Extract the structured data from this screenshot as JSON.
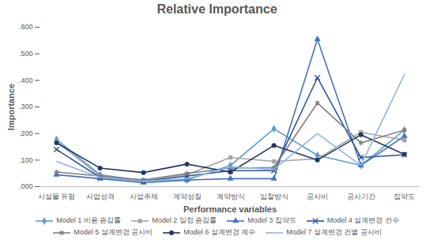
{
  "chart_data": {
    "type": "line",
    "title": "Relative Importance",
    "x_label": "Performance variables",
    "y_label": "Importance",
    "categories": [
      "시설물 유형",
      "사업성격",
      "사업주체",
      "계약성질",
      "계약방식",
      "입찰방식",
      "공사비",
      "공사기간",
      "집약도"
    ],
    "ylim": [
      0,
      0.6
    ],
    "yticks": [
      {
        "value": 0,
        "label": ".000"
      },
      {
        "value": 0.1,
        "label": ".100"
      },
      {
        "value": 0.2,
        "label": ".200"
      },
      {
        "value": 0.3,
        "label": ".300"
      },
      {
        "value": 0.4,
        "label": ".400"
      },
      {
        "value": 0.5,
        "label": ".500"
      },
      {
        "value": 0.6,
        "label": ".600"
      }
    ],
    "grid": false,
    "legend": "bottom",
    "series": [
      {
        "name": "Model 1 비용 증감률",
        "color": "#5b9bd5",
        "marker": "diamond",
        "values": [
          0.178,
          0.045,
          0.022,
          0.025,
          0.08,
          0.218,
          0.118,
          0.08,
          0.213
        ]
      },
      {
        "name": "Model 2 일정 증감률",
        "color": "#a5a5a5",
        "marker": "square",
        "values": [
          0.17,
          0.04,
          0.025,
          0.045,
          0.11,
          0.095,
          0.105,
          0.205,
          0.175
        ]
      },
      {
        "name": "Model 3 집약도",
        "color": "#4472c4",
        "marker": "triangle",
        "values": [
          0.045,
          0.03,
          0.015,
          0.025,
          0.03,
          0.03,
          0.555,
          0.08,
          0.19
        ]
      },
      {
        "name": "Model 4 설계변경 건수",
        "color": "#2e5597",
        "marker": "times",
        "values": [
          0.14,
          0.035,
          0.02,
          0.04,
          0.06,
          0.06,
          0.41,
          0.11,
          0.12
        ]
      },
      {
        "name": "Model 5 설계변경 공사비",
        "color": "#7f7f7f",
        "marker": "asterisk",
        "values": [
          0.055,
          0.04,
          0.025,
          0.05,
          0.07,
          0.072,
          0.315,
          0.165,
          0.213
        ]
      },
      {
        "name": "Model 6 설계변경 계수",
        "color": "#1f3864",
        "marker": "circle",
        "values": [
          0.165,
          0.07,
          0.053,
          0.085,
          0.055,
          0.155,
          0.1,
          0.195,
          0.122
        ]
      },
      {
        "name": "Model 7 설계변경 건별 공사비",
        "color": "#8db8e2",
        "marker": "none",
        "values": [
          0.095,
          0.035,
          0.02,
          0.03,
          0.075,
          0.065,
          0.2,
          0.08,
          0.422
        ]
      }
    ]
  }
}
